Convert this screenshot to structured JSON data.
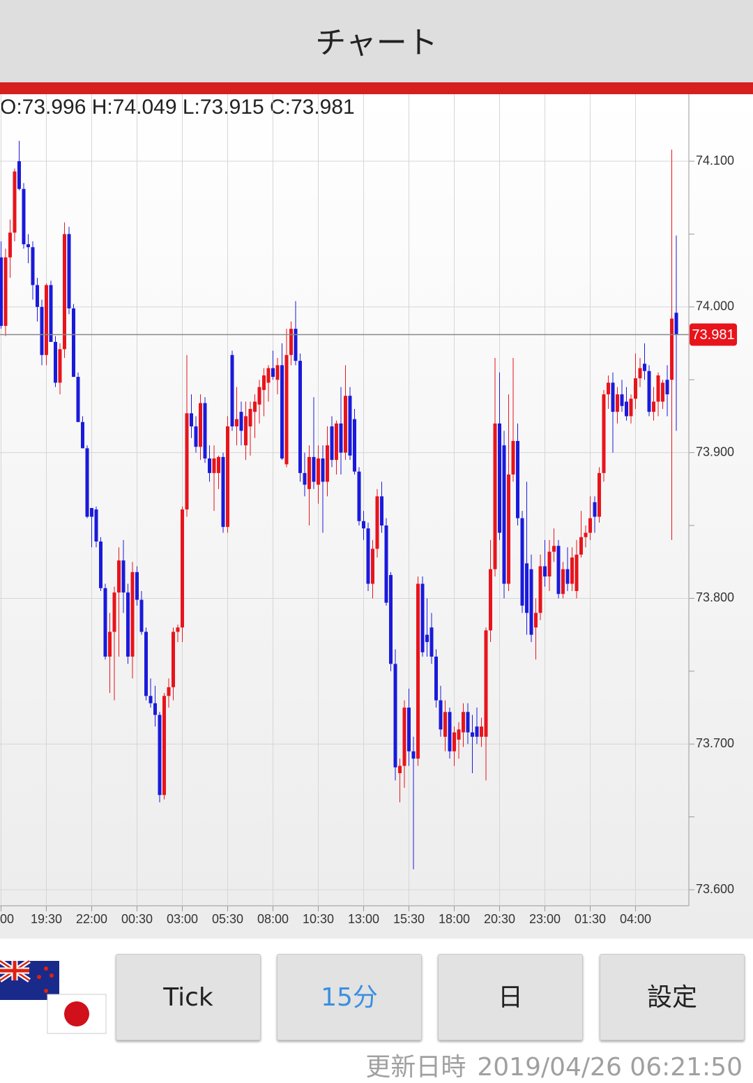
{
  "header": {
    "title": "チャート"
  },
  "chart_data": {
    "type": "candlestick",
    "ohlc_text": "O:73.996 H:74.049 L:73.915 C:73.981",
    "last_price": 73.981,
    "up_color": "#e8141b",
    "down_color": "#1a1adb",
    "grid": true,
    "ylim": [
      73.589,
      74.146
    ],
    "yticks": [
      {
        "value": 73.6,
        "label": "73.600"
      },
      {
        "value": 73.7,
        "label": "73.700"
      },
      {
        "value": 73.8,
        "label": "73.800"
      },
      {
        "value": 73.9,
        "label": "73.900"
      },
      {
        "value": 74.0,
        "label": "74.000"
      },
      {
        "value": 74.1,
        "label": "74.100"
      }
    ],
    "minor_yticks": [
      73.65,
      73.75,
      73.85,
      73.95,
      74.05
    ],
    "categories": [
      "00",
      null,
      null,
      null,
      null,
      null,
      null,
      null,
      null,
      null,
      "19:30",
      null,
      null,
      null,
      null,
      null,
      null,
      null,
      null,
      null,
      "22:00",
      null,
      null,
      null,
      null,
      null,
      null,
      null,
      null,
      null,
      "00:30",
      null,
      null,
      null,
      null,
      null,
      null,
      null,
      null,
      null,
      "03:00",
      null,
      null,
      null,
      null,
      null,
      null,
      null,
      null,
      null,
      "05:30",
      null,
      null,
      null,
      null,
      null,
      null,
      null,
      null,
      null,
      "08:00",
      null,
      null,
      null,
      null,
      null,
      null,
      null,
      null,
      null,
      "10:30",
      null,
      null,
      null,
      null,
      null,
      null,
      null,
      null,
      null,
      "13:00",
      null,
      null,
      null,
      null,
      null,
      null,
      null,
      null,
      null,
      "15:30",
      null,
      null,
      null,
      null,
      null,
      null,
      null,
      null,
      null,
      "18:00",
      null,
      null,
      null,
      null,
      null,
      null,
      null,
      null,
      null,
      "20:30",
      null,
      null,
      null,
      null,
      null,
      null,
      null,
      null,
      null,
      "23:00",
      null,
      null,
      null,
      null,
      null,
      null,
      null,
      null,
      null,
      "01:30",
      null,
      null,
      null,
      null,
      null,
      null,
      null,
      null,
      null,
      "04:00",
      null,
      null,
      null,
      null,
      null,
      null,
      null,
      null,
      null
    ],
    "open": [
      74.034,
      73.987,
      74.034,
      74.051,
      74.1,
      74.081,
      74.043,
      74.041,
      74.015,
      74.0,
      73.967,
      74.015,
      73.976,
      73.948,
      73.971,
      74.05,
      73.999,
      73.952,
      73.921,
      73.903,
      73.862,
      73.861,
      73.839,
      73.807,
      73.76,
      73.777,
      73.804,
      73.826,
      73.804,
      73.76,
      73.818,
      73.799,
      73.777,
      73.733,
      73.728,
      73.72,
      73.665,
      73.733,
      73.739,
      73.777,
      73.78,
      73.861,
      73.927,
      73.918,
      73.904,
      73.934,
      73.896,
      73.886,
      73.886,
      73.897,
      73.849,
      73.967,
      73.918,
      73.928,
      73.905,
      73.918,
      73.928,
      73.933,
      73.943,
      73.948,
      73.958,
      73.95,
      73.96,
      73.892,
      73.967,
      73.985,
      73.963,
      73.886,
      73.875,
      73.897,
      73.878,
      73.896,
      73.88,
      73.918,
      73.895,
      73.92,
      73.9,
      73.939,
      73.923,
      73.887,
      73.853,
      73.848,
      73.81,
      73.834,
      73.87,
      73.85,
      73.816,
      73.755,
      73.68,
      73.685,
      73.725,
      73.695,
      73.69,
      73.81,
      73.775,
      73.78,
      73.76,
      73.73,
      73.705,
      73.722,
      73.695,
      73.703,
      73.708,
      73.722,
      73.708,
      73.712,
      73.705,
      73.705,
      73.778,
      73.82,
      73.92,
      73.905,
      73.81,
      73.885,
      73.908,
      73.855,
      73.824,
      73.82,
      73.78,
      73.79,
      73.822,
      73.815,
      73.832,
      73.836,
      73.803,
      73.82,
      73.81,
      73.805,
      73.83,
      73.842,
      73.845,
      73.866,
      73.856,
      73.886,
      73.94,
      73.948,
      73.928,
      73.94,
      73.935,
      73.925,
      73.937,
      73.951,
      73.961,
      73.956,
      73.928,
      73.935,
      73.935,
      73.95,
      73.95,
      73.996
    ],
    "high": [
      74.045,
      74.04,
      74.06,
      74.095,
      74.114,
      74.085,
      74.05,
      74.045,
      74.02,
      74.005,
      74.016,
      74.018,
      73.98,
      73.975,
      74.058,
      74.055,
      74.002,
      73.955,
      73.925,
      73.905,
      73.862,
      73.863,
      73.842,
      73.81,
      73.79,
      73.808,
      73.835,
      73.84,
      73.81,
      73.825,
      73.822,
      73.805,
      73.78,
      73.745,
      73.74,
      73.722,
      73.735,
      73.745,
      73.78,
      73.782,
      73.863,
      73.967,
      73.94,
      73.925,
      73.94,
      73.938,
      73.905,
      73.905,
      73.898,
      73.9,
      73.925,
      73.97,
      73.945,
      73.935,
      73.935,
      73.935,
      73.94,
      73.95,
      73.958,
      73.96,
      73.97,
      73.965,
      73.975,
      73.985,
      73.99,
      74.004,
      73.968,
      73.9,
      73.905,
      73.938,
      73.905,
      73.905,
      73.918,
      73.925,
      73.922,
      73.945,
      73.96,
      73.945,
      73.93,
      73.89,
      73.86,
      73.852,
      73.84,
      73.875,
      73.88,
      73.855,
      73.818,
      73.765,
      73.69,
      73.73,
      73.738,
      73.705,
      73.815,
      73.815,
      73.8,
      73.79,
      73.765,
      73.74,
      73.73,
      73.725,
      73.712,
      73.715,
      73.728,
      73.728,
      73.72,
      73.725,
      73.718,
      73.78,
      73.84,
      73.965,
      73.955,
      73.915,
      73.94,
      73.965,
      73.92,
      73.86,
      73.88,
      73.83,
      73.8,
      73.83,
      73.84,
      73.84,
      73.848,
      73.84,
      73.825,
      73.835,
      73.835,
      73.84,
      73.86,
      73.85,
      73.87,
      73.87,
      73.89,
      73.943,
      73.953,
      73.955,
      73.945,
      73.95,
      73.945,
      73.94,
      73.968,
      73.965,
      73.975,
      73.96,
      73.945,
      73.955,
      73.95,
      73.96,
      74.108,
      74.049
    ],
    "low": [
      73.985,
      73.98,
      74.02,
      74.045,
      74.08,
      74.04,
      74.03,
      74.005,
      73.99,
      73.96,
      73.96,
      73.976,
      73.945,
      73.94,
      73.965,
      73.995,
      73.952,
      73.921,
      73.903,
      73.855,
      73.835,
      73.835,
      73.805,
      73.758,
      73.735,
      73.73,
      73.76,
      73.79,
      73.755,
      73.745,
      73.795,
      73.775,
      73.73,
      73.725,
      73.712,
      73.66,
      73.662,
      73.725,
      73.73,
      73.77,
      73.77,
      73.856,
      73.91,
      73.9,
      73.895,
      73.893,
      73.88,
      73.86,
      73.875,
      73.845,
      73.845,
      73.915,
      73.905,
      73.905,
      73.895,
      73.898,
      73.91,
      73.92,
      73.925,
      73.935,
      73.95,
      73.94,
      73.895,
      73.89,
      73.96,
      73.96,
      73.88,
      73.87,
      73.85,
      73.875,
      73.865,
      73.845,
      73.87,
      73.89,
      73.885,
      73.885,
      73.895,
      73.895,
      73.885,
      73.85,
      73.84,
      73.805,
      73.8,
      73.828,
      73.845,
      73.795,
      73.75,
      73.675,
      73.66,
      73.67,
      73.685,
      73.614,
      73.685,
      73.76,
      73.76,
      73.755,
      73.725,
      73.705,
      73.695,
      73.69,
      73.685,
      73.69,
      73.698,
      73.7,
      73.68,
      73.7,
      73.698,
      73.675,
      73.77,
      73.815,
      73.84,
      73.8,
      73.805,
      73.88,
      73.85,
      73.79,
      73.775,
      73.77,
      73.758,
      73.785,
      73.808,
      73.805,
      73.825,
      73.8,
      73.8,
      73.805,
      73.805,
      73.8,
      73.828,
      73.835,
      73.84,
      73.845,
      73.852,
      73.88,
      73.93,
      73.9,
      73.92,
      73.928,
      73.922,
      73.92,
      73.93,
      73.945,
      73.95,
      73.925,
      73.922,
      73.925,
      73.93,
      73.925,
      73.84,
      73.915
    ],
    "close": [
      73.987,
      74.034,
      74.051,
      74.093,
      74.081,
      74.043,
      74.041,
      74.015,
      74.0,
      73.967,
      74.015,
      73.976,
      73.948,
      73.971,
      74.05,
      73.999,
      73.952,
      73.921,
      73.903,
      73.856,
      73.856,
      73.839,
      73.807,
      73.76,
      73.777,
      73.804,
      73.826,
      73.804,
      73.76,
      73.818,
      73.799,
      73.777,
      73.733,
      73.728,
      73.72,
      73.665,
      73.733,
      73.739,
      73.777,
      73.78,
      73.861,
      73.927,
      73.918,
      73.904,
      73.934,
      73.896,
      73.886,
      73.896,
      73.897,
      73.849,
      73.918,
      73.918,
      73.923,
      73.915,
      73.925,
      73.93,
      73.935,
      73.945,
      73.953,
      73.958,
      73.952,
      73.96,
      73.896,
      73.967,
      73.985,
      73.963,
      73.886,
      73.878,
      73.897,
      73.88,
      73.896,
      73.88,
      73.905,
      73.895,
      73.92,
      73.9,
      73.939,
      73.898,
      73.887,
      73.853,
      73.848,
      73.81,
      73.834,
      73.87,
      73.85,
      73.797,
      73.755,
      73.684,
      73.685,
      73.725,
      73.695,
      73.69,
      73.81,
      73.763,
      73.77,
      73.76,
      73.73,
      73.71,
      73.722,
      73.695,
      73.708,
      73.71,
      73.722,
      73.708,
      73.705,
      73.705,
      73.712,
      73.778,
      73.82,
      73.92,
      73.845,
      73.81,
      73.885,
      73.908,
      73.855,
      73.795,
      73.79,
      73.775,
      73.79,
      73.822,
      73.815,
      73.832,
      73.836,
      73.803,
      73.82,
      73.81,
      73.828,
      73.83,
      73.842,
      73.845,
      73.855,
      73.856,
      73.886,
      73.94,
      73.948,
      73.928,
      73.94,
      73.932,
      73.925,
      73.937,
      73.951,
      73.958,
      73.956,
      73.928,
      73.935,
      73.953,
      73.948,
      73.94,
      73.992,
      73.981
    ]
  },
  "buttons": [
    "Tick",
    "15分",
    "日",
    "設定"
  ],
  "footer": {
    "label": "更新日時",
    "timestamp": "2019/04/26 06:21:50"
  }
}
